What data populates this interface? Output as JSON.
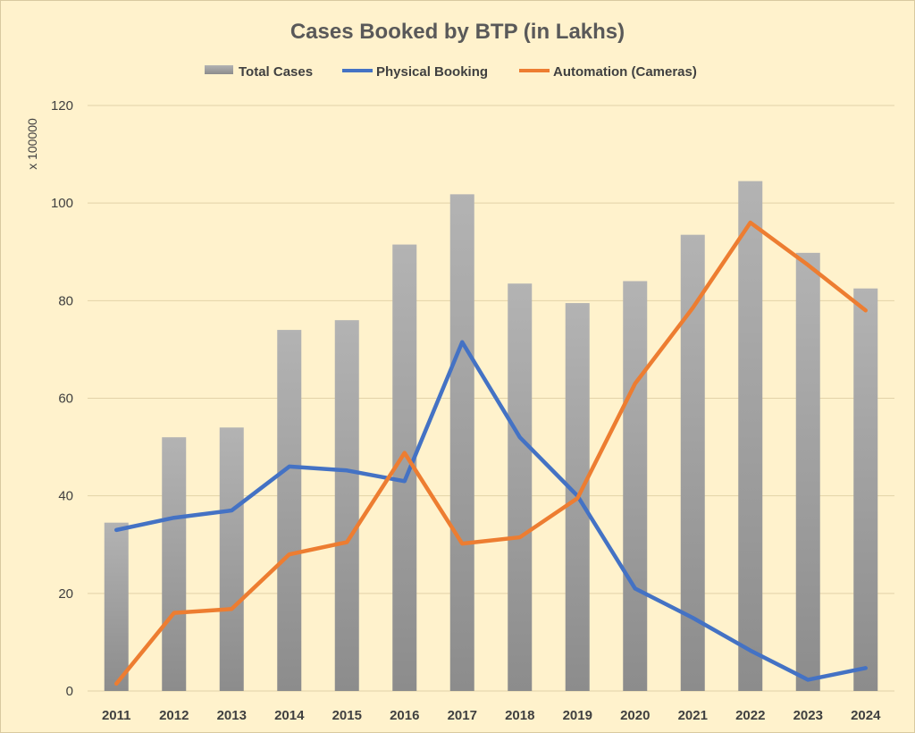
{
  "chart_data": {
    "type": "bar",
    "title": "Cases Booked by BTP (in Lakhs)",
    "ylabel": "x 100000",
    "xlabel": "",
    "ylim": [
      0,
      120
    ],
    "yticks": [
      0,
      20,
      40,
      60,
      80,
      100,
      120
    ],
    "grid": true,
    "legend_position": "top",
    "categories": [
      "2011",
      "2012",
      "2013",
      "2014",
      "2015",
      "2016",
      "2017",
      "2018",
      "2019",
      "2020",
      "2021",
      "2022",
      "2023",
      "2024"
    ],
    "series": [
      {
        "name": "Total Cases",
        "kind": "bar",
        "color": "#a6a6a6",
        "values": [
          34.5,
          52,
          54,
          74,
          76,
          91.5,
          101.8,
          83.5,
          79.5,
          84,
          93.5,
          104.5,
          89.8,
          82.5
        ]
      },
      {
        "name": "Physical Booking",
        "kind": "line",
        "color": "#4472c4",
        "values": [
          33,
          35.5,
          37,
          46,
          45.2,
          43,
          71.5,
          52,
          40,
          21,
          15,
          8.3,
          2.3,
          4.7
        ]
      },
      {
        "name": "Automation (Cameras)",
        "kind": "line",
        "color": "#ed7d31",
        "values": [
          1.5,
          16,
          16.8,
          28,
          30.5,
          48.8,
          30.2,
          31.5,
          39.5,
          63,
          78.5,
          96,
          87.3,
          78
        ]
      }
    ]
  }
}
